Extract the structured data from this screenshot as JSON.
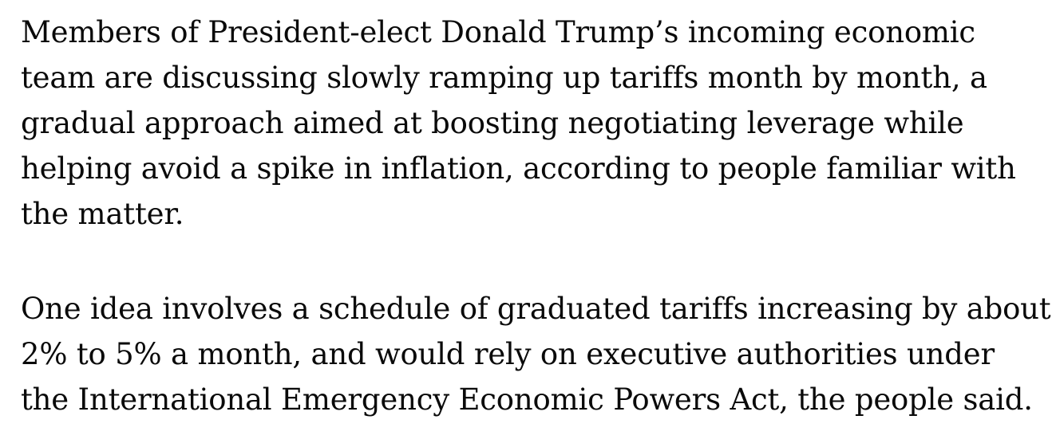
{
  "page": {
    "background_color": "#ffffff",
    "text_color": "#0a0a0a"
  },
  "article": {
    "paragraphs": [
      {
        "lines": [
          "Members of President-elect Donald Trump’s incoming economic",
          "team are discussing slowly ramping up tariffs month by month, a",
          "gradual approach aimed at boosting negotiating leverage while",
          "helping avoid a spike in inflation, according to people familiar with",
          "the matter."
        ]
      },
      {
        "lines": [
          "One idea involves a schedule of graduated tariffs increasing by about",
          "2% to 5% a month, and would rely on executive authorities under",
          "the International Emergency Economic Powers Act, the people said."
        ]
      }
    ]
  }
}
